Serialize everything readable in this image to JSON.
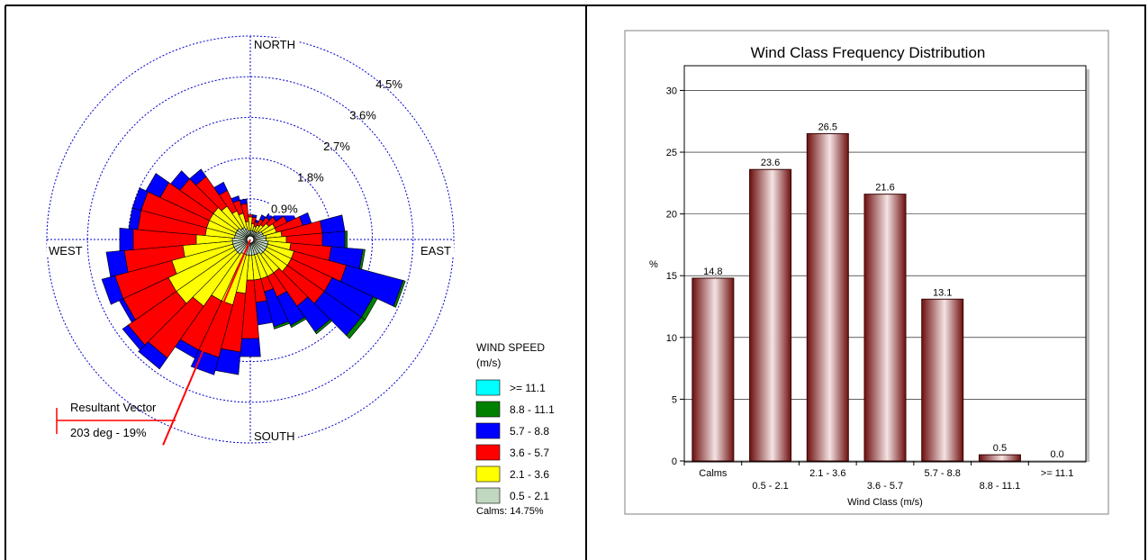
{
  "colors": {
    "calm_band": "#c0d8c0",
    "band_2": "#ffff00",
    "band_3": "#ff0000",
    "band_4": "#0000ff",
    "band_5": "#008000",
    "band_6": "#00ffff",
    "bar": "#8b1a1a",
    "vector": "#ff0000",
    "grid_circle": "#0000cc"
  },
  "windrose": {
    "directions": [
      "NORTH",
      "SOUTH",
      "EAST",
      "WEST"
    ],
    "ring_labels": [
      "0.9%",
      "1.8%",
      "2.7%",
      "3.6%",
      "4.5%"
    ],
    "ring_values": [
      0.9,
      1.8,
      2.7,
      3.6,
      4.5
    ],
    "resultant_vector": {
      "title": "Resultant Vector",
      "text": "203 deg - 19%",
      "direction_deg": 203
    },
    "legend": {
      "title_line1": "WIND SPEED",
      "title_line2": "(m/s)",
      "items": [
        {
          "label": ">= 11.1",
          "color": "#00ffff"
        },
        {
          "label": "8.8 - 11.1",
          "color": "#008000"
        },
        {
          "label": "5.7 -  8.8",
          "color": "#0000ff"
        },
        {
          "label": "3.6 -  5.7",
          "color": "#ff0000"
        },
        {
          "label": "2.1 -  3.6",
          "color": "#ffff00"
        },
        {
          "label": "0.5 -  2.1",
          "color": "#c0d8c0"
        }
      ],
      "calms": "Calms:  14.75%"
    }
  },
  "chart_data": [
    {
      "type": "windrose",
      "sector_width_deg": 10,
      "band_order": [
        "0.5 - 2.1",
        "2.1 - 3.6",
        "3.6 - 5.7",
        "5.7 - 8.8",
        "8.8 - 11.1",
        ">= 11.1"
      ],
      "directions_deg": [
        0,
        10,
        20,
        30,
        40,
        50,
        60,
        70,
        80,
        90,
        100,
        110,
        120,
        130,
        140,
        150,
        160,
        170,
        180,
        190,
        200,
        210,
        220,
        230,
        240,
        250,
        260,
        270,
        280,
        290,
        300,
        310,
        320,
        330,
        340,
        350
      ],
      "cumulative_percent": [
        [
          0.2,
          0.5,
          0.55,
          0.55,
          0.55,
          0.55
        ],
        [
          0.2,
          0.35,
          0.5,
          0.55,
          0.55,
          0.55
        ],
        [
          0.2,
          0.3,
          0.4,
          0.45,
          0.45,
          0.45
        ],
        [
          0.2,
          0.35,
          0.5,
          0.6,
          0.6,
          0.6
        ],
        [
          0.2,
          0.4,
          0.6,
          0.7,
          0.7,
          0.7
        ],
        [
          0.25,
          0.5,
          0.7,
          0.9,
          0.9,
          0.9
        ],
        [
          0.3,
          0.6,
          0.9,
          1.1,
          1.1,
          1.1
        ],
        [
          0.3,
          0.6,
          1.2,
          1.4,
          1.4,
          1.4
        ],
        [
          0.35,
          0.7,
          1.6,
          2.1,
          2.1,
          2.1
        ],
        [
          0.35,
          0.8,
          1.6,
          2.1,
          2.15,
          2.15
        ],
        [
          0.4,
          0.9,
          1.8,
          2.5,
          2.55,
          2.55
        ],
        [
          0.4,
          1.0,
          2.2,
          3.5,
          3.55,
          3.55
        ],
        [
          0.4,
          1.0,
          2.0,
          3.0,
          3.1,
          3.1
        ],
        [
          0.4,
          1.0,
          2.0,
          3.0,
          3.1,
          3.1
        ],
        [
          0.4,
          0.9,
          1.8,
          2.5,
          2.55,
          2.55
        ],
        [
          0.35,
          0.9,
          1.4,
          2.1,
          2.15,
          2.15
        ],
        [
          0.35,
          0.9,
          1.2,
          2.0,
          2.05,
          2.05
        ],
        [
          0.35,
          0.9,
          1.4,
          1.9,
          1.9,
          1.9
        ],
        [
          0.35,
          0.9,
          2.2,
          2.6,
          2.6,
          2.6
        ],
        [
          0.35,
          1.2,
          2.5,
          3.0,
          3.0,
          3.0
        ],
        [
          0.35,
          1.5,
          2.7,
          3.1,
          3.1,
          3.1
        ],
        [
          0.35,
          1.5,
          2.7,
          2.9,
          2.9,
          2.9
        ],
        [
          0.4,
          1.8,
          3.2,
          3.5,
          3.5,
          3.5
        ],
        [
          0.4,
          2.0,
          3.3,
          3.45,
          3.45,
          3.45
        ],
        [
          0.4,
          2.0,
          3.1,
          3.2,
          3.2,
          3.2
        ],
        [
          0.4,
          1.8,
          3.1,
          3.4,
          3.4,
          3.4
        ],
        [
          0.4,
          1.5,
          2.8,
          3.2,
          3.2,
          3.2
        ],
        [
          0.4,
          1.2,
          2.6,
          2.9,
          2.9,
          2.9
        ],
        [
          0.35,
          1.0,
          2.5,
          2.7,
          2.7,
          2.7
        ],
        [
          0.35,
          1.0,
          2.5,
          2.7,
          2.7,
          2.7
        ],
        [
          0.35,
          1.0,
          2.2,
          2.55,
          2.55,
          2.55
        ],
        [
          0.35,
          1.0,
          1.9,
          2.15,
          2.15,
          2.15
        ],
        [
          0.3,
          0.9,
          1.7,
          1.9,
          1.9,
          1.9
        ],
        [
          0.3,
          0.7,
          1.2,
          1.4,
          1.4,
          1.4
        ],
        [
          0.25,
          0.6,
          0.9,
          1.0,
          1.0,
          1.0
        ],
        [
          0.2,
          0.4,
          0.8,
          0.9,
          0.9,
          0.9
        ]
      ],
      "radial_range": [
        0,
        4.5
      ],
      "calms_percent": 14.75
    },
    {
      "type": "bar",
      "title": "Wind Class Frequency Distribution",
      "xlabel": "Wind Class (m/s)",
      "ylabel": "%",
      "categories": [
        "Calms",
        "0.5 -  2.1",
        "2.1 -  3.6",
        "3.6 -  5.7",
        "5.7 -  8.8",
        "8.8 - 11.1",
        ">= 11.1"
      ],
      "values": [
        14.8,
        23.6,
        26.5,
        21.6,
        13.1,
        0.5,
        0.0
      ],
      "value_labels": [
        "14.8",
        "23.6",
        "26.5",
        "21.6",
        "13.1",
        "0.5",
        "0.0"
      ],
      "ylim": [
        0,
        32
      ],
      "yticks": [
        0,
        5,
        10,
        15,
        20,
        25,
        30
      ],
      "grid": true
    }
  ]
}
